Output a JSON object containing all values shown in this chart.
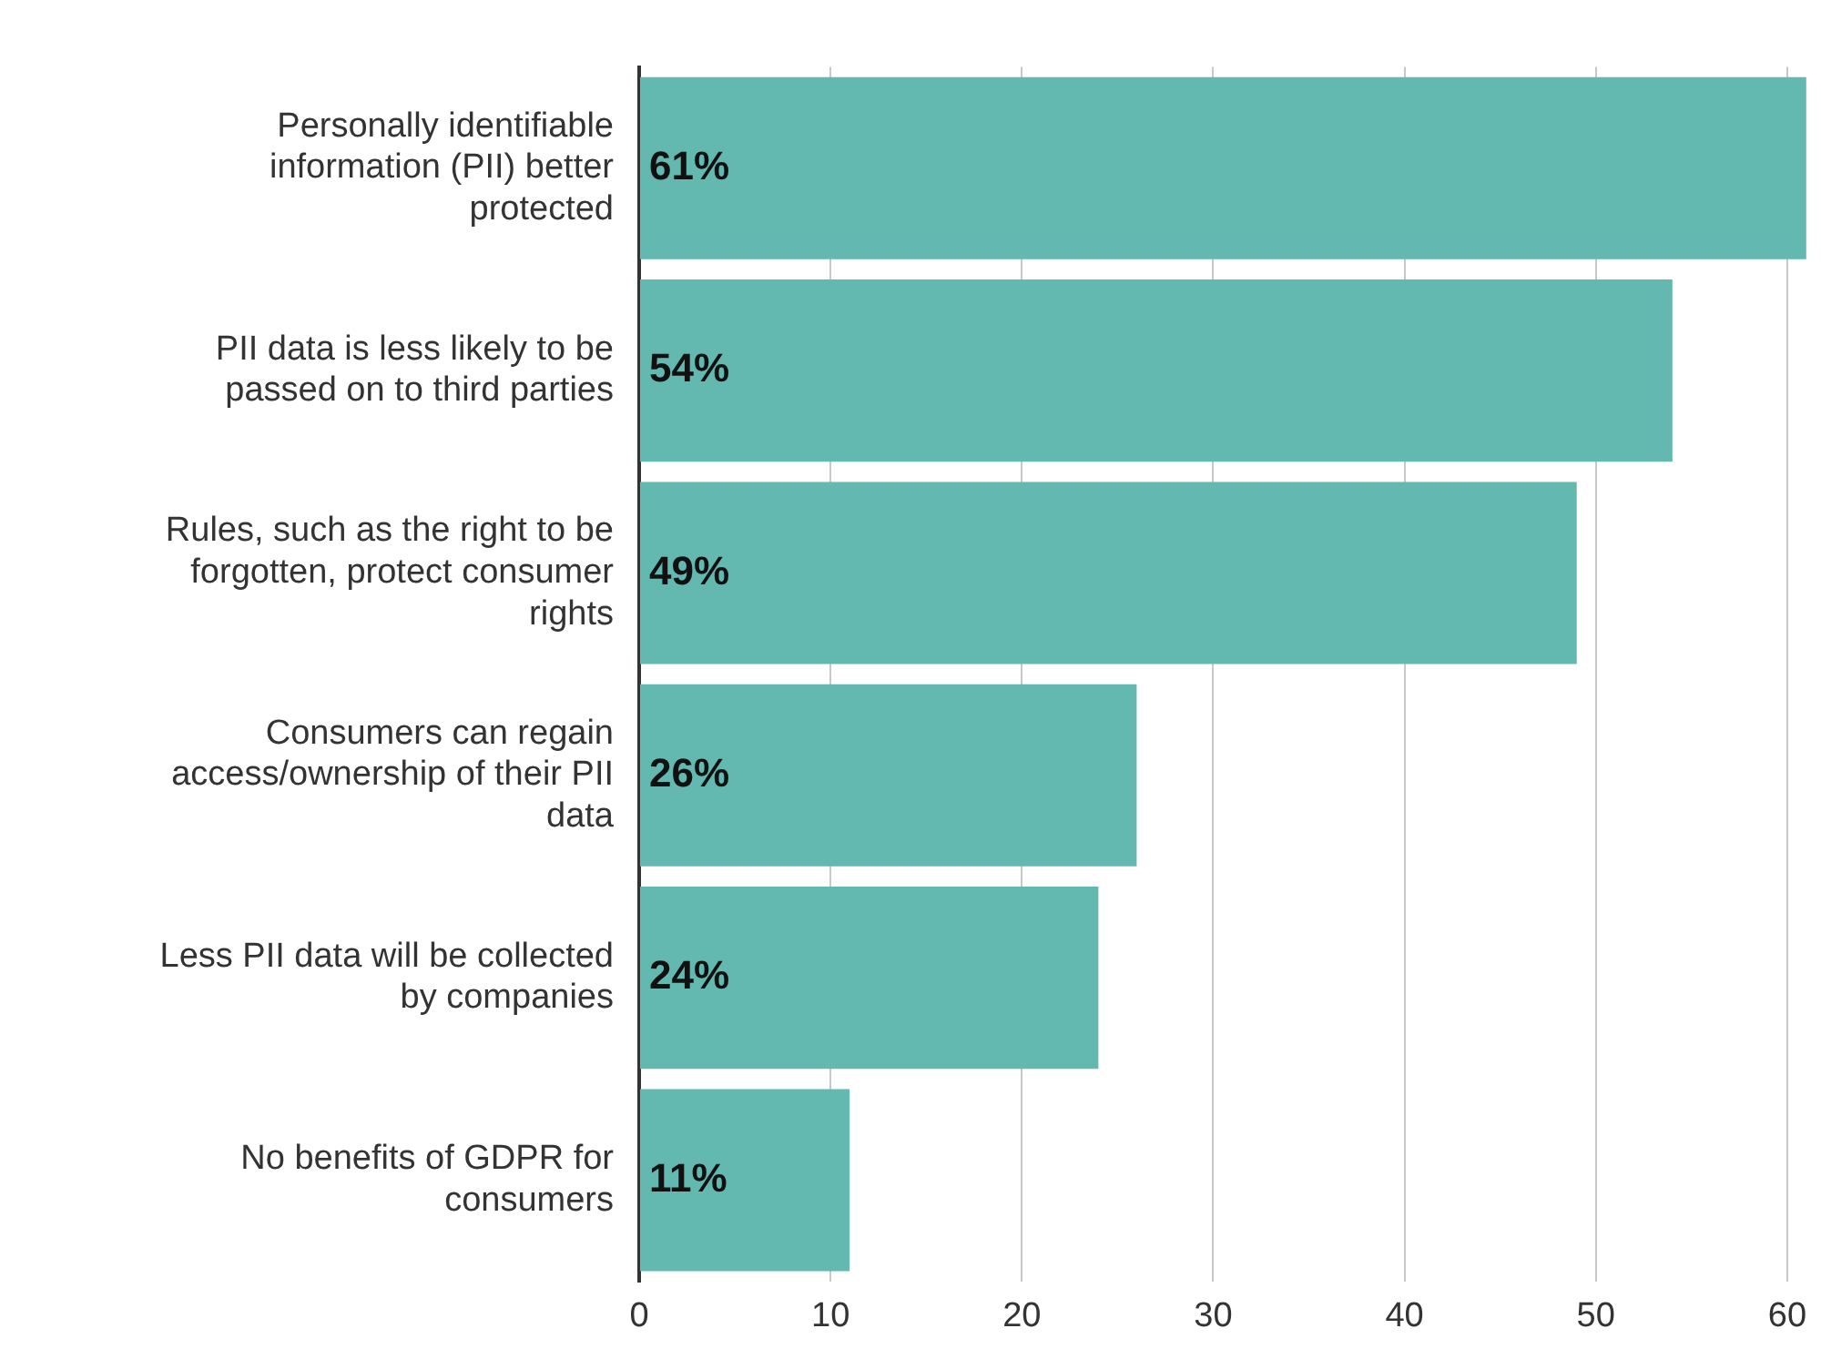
{
  "chart_data": {
    "type": "bar",
    "orientation": "horizontal",
    "categories": [
      "Personally identifiable information (PII) better protected",
      "PII data is less likely to be passed on to third parties",
      "Rules, such as the right to be forgotten, protect consumer rights",
      "Consumers can regain access/ownership of their PII data",
      "Less PII data will be collected by companies",
      "No benefits of GDPR for consumers"
    ],
    "values": [
      61,
      54,
      49,
      26,
      24,
      11
    ],
    "value_labels": [
      "61%",
      "54%",
      "49%",
      "26%",
      "24%",
      "11%"
    ],
    "color": "#63b8b0",
    "xlim": [
      0,
      61
    ],
    "xticks": [
      0,
      10,
      20,
      30,
      40,
      50,
      60
    ],
    "grid": "x",
    "legend": false
  }
}
